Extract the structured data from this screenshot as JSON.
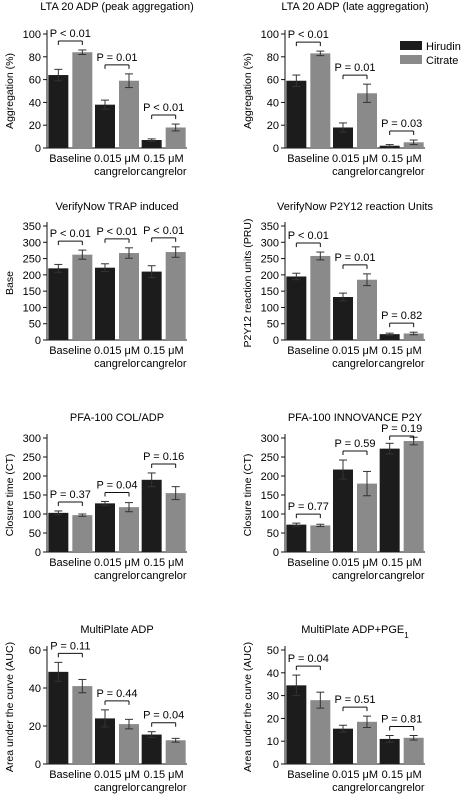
{
  "legend": {
    "entries": [
      {
        "label": "Hirudin",
        "color": "#1c1c1c"
      },
      {
        "label": "Citrate",
        "color": "#8a8a8a"
      }
    ],
    "placement": "top-right of upper-right panel"
  },
  "colors": {
    "hirudin": "#1c1c1c",
    "citrate": "#8a8a8a"
  },
  "chart_data": [
    {
      "type": "bar",
      "title": "LTA 20 ADP (peak aggregation)",
      "ylabel": "Aggregation (%)",
      "ylim": [
        0,
        100
      ],
      "yticks": [
        0,
        20,
        40,
        60,
        80,
        100
      ],
      "categories": [
        [
          "Baseline"
        ],
        [
          "0.015 μM",
          "cangrelor"
        ],
        [
          "0.15 μM",
          "cangrelor"
        ]
      ],
      "series": [
        {
          "name": "Hirudin",
          "values": [
            64,
            38,
            7
          ],
          "errors": [
            5,
            4,
            1
          ]
        },
        {
          "name": "Citrate",
          "values": [
            84,
            59,
            18
          ],
          "errors": [
            2,
            6,
            3
          ]
        }
      ],
      "pvalues": [
        "P < 0.01",
        "P = 0.01",
        "P < 0.01"
      ]
    },
    {
      "type": "bar",
      "title": "LTA 20 ADP (late aggregation)",
      "ylabel": "Aggregation (%)",
      "ylim": [
        0,
        100
      ],
      "yticks": [
        0,
        20,
        40,
        60,
        80,
        100
      ],
      "categories": [
        [
          "Baseline"
        ],
        [
          "0.015 μM",
          "cangrelor"
        ],
        [
          "0.15 μM",
          "cangrelor"
        ]
      ],
      "series": [
        {
          "name": "Hirudin",
          "values": [
            59,
            18,
            2
          ],
          "errors": [
            5,
            4,
            1
          ]
        },
        {
          "name": "Citrate",
          "values": [
            83,
            48,
            5
          ],
          "errors": [
            2,
            8,
            2
          ]
        }
      ],
      "pvalues": [
        "P < 0.01",
        "P = 0.01",
        "P = 0.03"
      ]
    },
    {
      "type": "bar",
      "title": "VerifyNow TRAP induced",
      "ylabel": "Base",
      "ylim": [
        0,
        350
      ],
      "yticks": [
        0,
        50,
        100,
        150,
        200,
        250,
        300,
        350
      ],
      "categories": [
        [
          "Baseline"
        ],
        [
          "0.015 μM",
          "cangrelor"
        ],
        [
          "0.15 μM",
          "cangrelor"
        ]
      ],
      "series": [
        {
          "name": "Hirudin",
          "values": [
            220,
            222,
            210
          ],
          "errors": [
            12,
            12,
            18
          ]
        },
        {
          "name": "Citrate",
          "values": [
            262,
            267,
            270
          ],
          "errors": [
            14,
            16,
            16
          ]
        }
      ],
      "pvalues": [
        "P < 0.01",
        "P < 0.01",
        "P < 0.01"
      ]
    },
    {
      "type": "bar",
      "title": "VerifyNow P2Y12 reaction Units",
      "ylabel": "P2Y12 reaction units (PRU)",
      "ylim": [
        0,
        350
      ],
      "yticks": [
        0,
        50,
        100,
        150,
        200,
        250,
        300,
        350
      ],
      "categories": [
        [
          "Baseline"
        ],
        [
          "0.015 μM",
          "cangrelor"
        ],
        [
          "0.15 μM",
          "cangrelor"
        ]
      ],
      "series": [
        {
          "name": "Hirudin",
          "values": [
            195,
            132,
            18
          ],
          "errors": [
            10,
            12,
            3
          ]
        },
        {
          "name": "Citrate",
          "values": [
            258,
            185,
            20
          ],
          "errors": [
            12,
            18,
            4
          ]
        }
      ],
      "pvalues": [
        "P < 0.01",
        "P = 0.01",
        "P = 0.82"
      ]
    },
    {
      "type": "bar",
      "title": "PFA-100 COL/ADP",
      "ylabel": "Closure time (CT)",
      "ylim": [
        0,
        300
      ],
      "yticks": [
        0,
        50,
        100,
        150,
        200,
        250,
        300
      ],
      "categories": [
        [
          "Baseline"
        ],
        [
          "0.015 μM",
          "cangrelor"
        ],
        [
          "0.15 μM",
          "cangrelor"
        ]
      ],
      "series": [
        {
          "name": "Hirudin",
          "values": [
            103,
            128,
            190
          ],
          "errors": [
            5,
            5,
            18
          ]
        },
        {
          "name": "Citrate",
          "values": [
            97,
            118,
            155
          ],
          "errors": [
            3,
            12,
            17
          ]
        }
      ],
      "pvalues": [
        "P = 0.37",
        "P = 0.04",
        "P = 0.16"
      ]
    },
    {
      "type": "bar",
      "title": "PFA-100 INNOVANCE P2Y",
      "ylabel": "Closure time (CT)",
      "ylim": [
        0,
        300
      ],
      "yticks": [
        0,
        50,
        100,
        150,
        200,
        250,
        300
      ],
      "categories": [
        [
          "Baseline"
        ],
        [
          "0.015 μM",
          "cangrelor"
        ],
        [
          "0.15 μM",
          "cangrelor"
        ]
      ],
      "series": [
        {
          "name": "Hirudin",
          "values": [
            72,
            217,
            272
          ],
          "errors": [
            4,
            25,
            14
          ]
        },
        {
          "name": "Citrate",
          "values": [
            70,
            180,
            292
          ],
          "errors": [
            3,
            32,
            10
          ]
        }
      ],
      "pvalues": [
        "P = 0.77",
        "P = 0.59",
        "P = 0.19"
      ]
    },
    {
      "type": "bar",
      "title": "MultiPlate ADP",
      "ylabel": "Area under the curve (AUC)",
      "ylim": [
        0,
        60
      ],
      "yticks": [
        0,
        20,
        40,
        60
      ],
      "categories": [
        [
          "Baseline"
        ],
        [
          "0.015 μM",
          "cangrelor"
        ],
        [
          "0.15 μM",
          "cangrelor"
        ]
      ],
      "series": [
        {
          "name": "Hirudin",
          "values": [
            48.5,
            24,
            15.5
          ],
          "errors": [
            5,
            4.5,
            1.5
          ]
        },
        {
          "name": "Citrate",
          "values": [
            41,
            21,
            12.5
          ],
          "errors": [
            3.5,
            2.5,
            1
          ]
        }
      ],
      "pvalues": [
        "P = 0.11",
        "P = 0.44",
        "P = 0.04"
      ]
    },
    {
      "type": "bar",
      "title": "MultiPlate ADP+PGE",
      "title_subscript": "1",
      "ylabel": "Area under the curve (AUC)",
      "ylim": [
        0,
        50
      ],
      "yticks": [
        0,
        10,
        20,
        30,
        40,
        50
      ],
      "categories": [
        [
          "Baseline"
        ],
        [
          "0.015 μM",
          "cangrelor"
        ],
        [
          "0.15 μM",
          "cangrelor"
        ]
      ],
      "series": [
        {
          "name": "Hirudin",
          "values": [
            34.5,
            15.5,
            11
          ],
          "errors": [
            4.5,
            1.5,
            1.5
          ]
        },
        {
          "name": "Citrate",
          "values": [
            28,
            18.5,
            11.5
          ],
          "errors": [
            3.5,
            2.5,
            1
          ]
        }
      ],
      "pvalues": [
        "P = 0.04",
        "P = 0.51",
        "P = 0.81"
      ]
    }
  ]
}
